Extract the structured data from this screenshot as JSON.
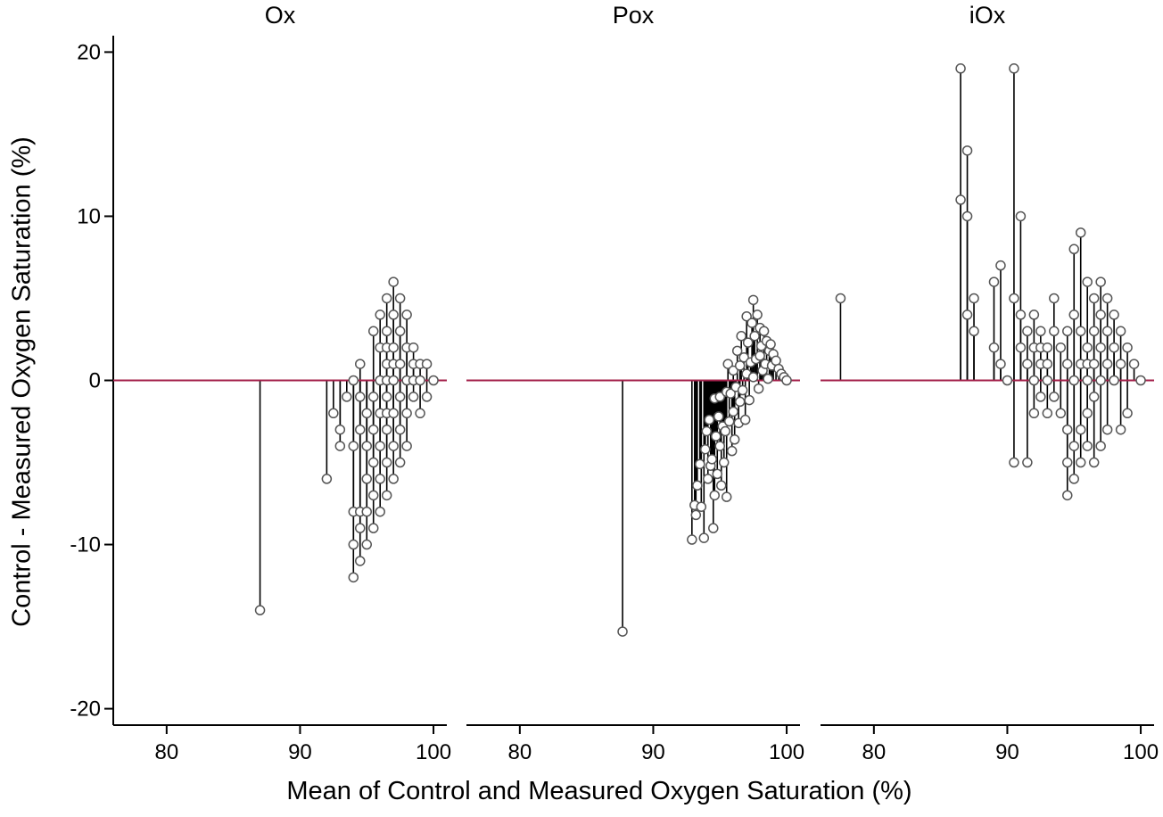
{
  "chart_data": {
    "type": "scatter",
    "style": "spike",
    "xlabel": "Mean of Control and Measured Oxygen Saturation (%)",
    "ylabel": "Control - Measured Oxygen Saturation (%)",
    "xlim": [
      76,
      101
    ],
    "ylim": [
      -21,
      21
    ],
    "xticks": [
      80,
      90,
      100
    ],
    "yticks": [
      -20,
      -10,
      0,
      10,
      20
    ],
    "reference_line": {
      "y": 0,
      "color": "#a3204a"
    },
    "grid": false,
    "legend": "none",
    "marker": "hollow-circle",
    "panels": [
      {
        "title": "Ox",
        "x": [
          87,
          92,
          92.5,
          93,
          93,
          93.5,
          94,
          94,
          94,
          94,
          94,
          94.5,
          94.5,
          94.5,
          94.5,
          94.5,
          94.5,
          95,
          95,
          95,
          95,
          95,
          95.5,
          95.5,
          95.5,
          95.5,
          95.5,
          95.5,
          96,
          96,
          96,
          96,
          96,
          96,
          96,
          96.5,
          96.5,
          96.5,
          96.5,
          96.5,
          96.5,
          96.5,
          96.5,
          96.5,
          96.5,
          97,
          97,
          97,
          97,
          97,
          97,
          97,
          97,
          97.5,
          97.5,
          97.5,
          97.5,
          97.5,
          97.5,
          98,
          98,
          98,
          98,
          98,
          98.5,
          98.5,
          98.5,
          98.5,
          99,
          99,
          99,
          99.5,
          99.5,
          100
        ],
        "y": [
          -14,
          -6,
          -2,
          -4,
          -3,
          -1,
          0,
          -4,
          -8,
          -10,
          -12,
          1,
          -1,
          -3,
          -8,
          -9,
          -11,
          -2,
          -4,
          -6,
          -8,
          -10,
          3,
          -1,
          -5,
          -7,
          -9,
          -3,
          4,
          2,
          0,
          -2,
          -4,
          -6,
          -8,
          5,
          3,
          1,
          -1,
          -3,
          -5,
          -7,
          2,
          -2,
          0,
          6,
          4,
          2,
          0,
          -2,
          -4,
          -6,
          1,
          5,
          3,
          1,
          -1,
          -3,
          -5,
          4,
          2,
          0,
          -2,
          -4,
          2,
          1,
          0,
          -1,
          1,
          0,
          -2,
          1,
          -1,
          0
        ]
      },
      {
        "title": "Pox",
        "x": [
          87.7,
          92.9,
          93.1,
          93.2,
          93.3,
          93.5,
          93.6,
          93.8,
          93.9,
          94.0,
          94.1,
          94.2,
          94.3,
          94.4,
          94.5,
          94.6,
          94.6,
          94.7,
          94.8,
          94.9,
          95.0,
          95.0,
          95.1,
          95.2,
          95.3,
          95.4,
          95.5,
          95.5,
          95.6,
          95.7,
          95.8,
          95.9,
          96.0,
          96.0,
          96.1,
          96.2,
          96.3,
          96.4,
          96.5,
          96.5,
          96.6,
          96.7,
          96.8,
          96.9,
          97.0,
          97.0,
          97.1,
          97.2,
          97.3,
          97.4,
          97.5,
          97.5,
          97.6,
          97.7,
          97.8,
          97.9,
          98.0,
          98.0,
          98.1,
          98.2,
          98.3,
          98.4,
          98.5,
          98.6,
          98.7,
          98.8,
          98.9,
          99.0,
          99.2,
          99.4,
          99.6,
          99.8,
          100.0
        ],
        "y": [
          -15.3,
          -9.7,
          -7.6,
          -8.2,
          -6.4,
          -5.1,
          -7.7,
          -9.6,
          -4.2,
          -3.1,
          -6.0,
          -2.4,
          -5.2,
          -4.8,
          -9.0,
          -1.1,
          -7.0,
          -3.4,
          -5.7,
          -2.2,
          -1.0,
          -4.0,
          -6.4,
          -2.8,
          -5.0,
          -3.1,
          -0.7,
          -7.1,
          1.0,
          -2.5,
          -0.8,
          -4.3,
          0.6,
          -1.9,
          -3.6,
          -0.4,
          1.8,
          -2.6,
          0.9,
          -1.3,
          2.7,
          -0.6,
          1.4,
          -2.4,
          3.9,
          0.4,
          2.3,
          -1.2,
          1.1,
          3.5,
          4.9,
          0.2,
          2.7,
          1.3,
          4.0,
          -0.5,
          3.2,
          1.5,
          2.1,
          0.6,
          3.0,
          1.0,
          2.4,
          0.1,
          1.8,
          2.2,
          0.9,
          1.6,
          1.2,
          0.7,
          0.4,
          0.2,
          0.0
        ]
      },
      {
        "title": "iOx",
        "x": [
          77.5,
          86.5,
          86.5,
          87,
          87,
          87,
          87.5,
          87.5,
          89,
          89,
          89.5,
          89.5,
          90,
          90.5,
          90.5,
          90.5,
          91,
          91,
          91,
          91.5,
          91.5,
          91.5,
          92,
          92,
          92,
          92,
          92.5,
          92.5,
          92.5,
          92.5,
          93,
          93,
          93,
          93,
          93.5,
          93.5,
          93.5,
          94,
          94,
          94.5,
          94.5,
          94.5,
          94.5,
          94.5,
          95,
          95,
          95,
          95,
          95,
          95.5,
          95.5,
          95.5,
          95.5,
          95.5,
          96,
          96,
          96,
          96,
          96,
          96,
          96.5,
          96.5,
          96.5,
          96.5,
          96.5,
          97,
          97,
          97,
          97,
          97,
          97.5,
          97.5,
          97.5,
          97.5,
          98,
          98,
          98,
          98.5,
          98.5,
          98.5,
          99,
          99,
          99.5,
          100
        ],
        "y": [
          5,
          19,
          11,
          14,
          10,
          4,
          5,
          3,
          6,
          2,
          7,
          1,
          0,
          19,
          5,
          -5,
          10,
          4,
          2,
          3,
          1,
          -5,
          4,
          2,
          0,
          -2,
          3,
          1,
          -1,
          2,
          2,
          0,
          -2,
          1,
          5,
          3,
          -1,
          2,
          -2,
          3,
          1,
          -3,
          -5,
          -7,
          8,
          4,
          0,
          -4,
          -6,
          9,
          3,
          1,
          -3,
          -5,
          6,
          2,
          0,
          -2,
          -4,
          1,
          5,
          3,
          1,
          -1,
          -5,
          6,
          4,
          2,
          0,
          -4,
          5,
          3,
          1,
          -3,
          4,
          2,
          0,
          3,
          1,
          -3,
          2,
          -2,
          1,
          0
        ]
      }
    ]
  }
}
